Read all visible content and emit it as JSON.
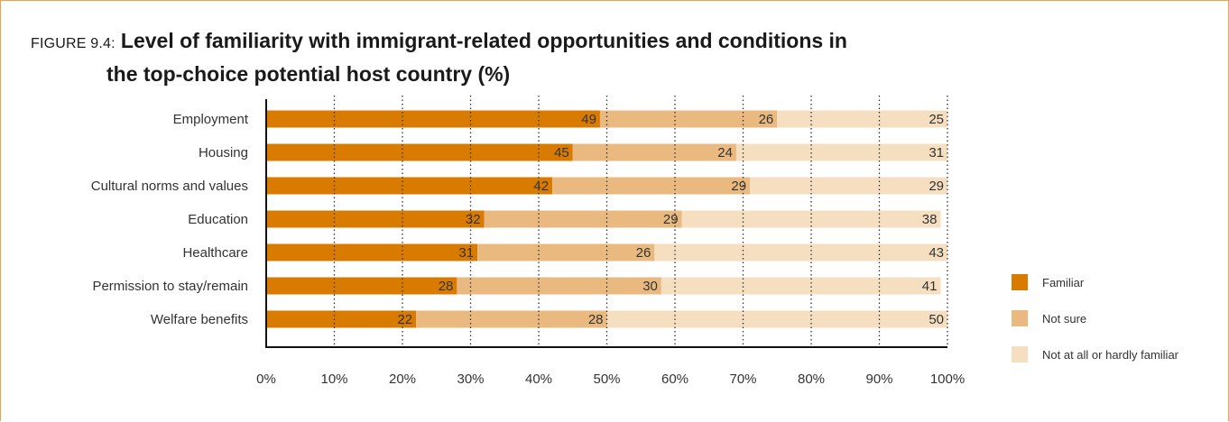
{
  "figure_label": "FIGURE 9.4:",
  "title_line1": "Level of familiarity with immigrant-related opportunities and conditions in",
  "title_line2": "the top-choice potential host country (%)",
  "colors": {
    "familiar": "#d97b00",
    "not_sure": "#e9b980",
    "not_familiar": "#f5dfc0",
    "frame": "#e6a34a"
  },
  "chart_data": {
    "type": "bar",
    "orientation": "horizontal",
    "stacked": true,
    "categories": [
      "Employment",
      "Housing",
      "Cultural norms and values",
      "Education",
      "Healthcare",
      "Permission to stay/remain",
      "Welfare benefits"
    ],
    "series": [
      {
        "name": "Familiar",
        "values": [
          49,
          45,
          42,
          32,
          31,
          28,
          22
        ]
      },
      {
        "name": "Not sure",
        "values": [
          26,
          24,
          29,
          29,
          26,
          30,
          28
        ]
      },
      {
        "name": "Not at all or hardly familiar",
        "values": [
          25,
          31,
          29,
          38,
          43,
          41,
          50
        ]
      }
    ],
    "xlim": [
      0,
      100
    ],
    "xticks": [
      "0%",
      "10%",
      "20%",
      "30%",
      "40%",
      "50%",
      "60%",
      "70%",
      "80%",
      "90%",
      "100%"
    ],
    "grid": "vertical dotted",
    "legend_position": "right"
  }
}
